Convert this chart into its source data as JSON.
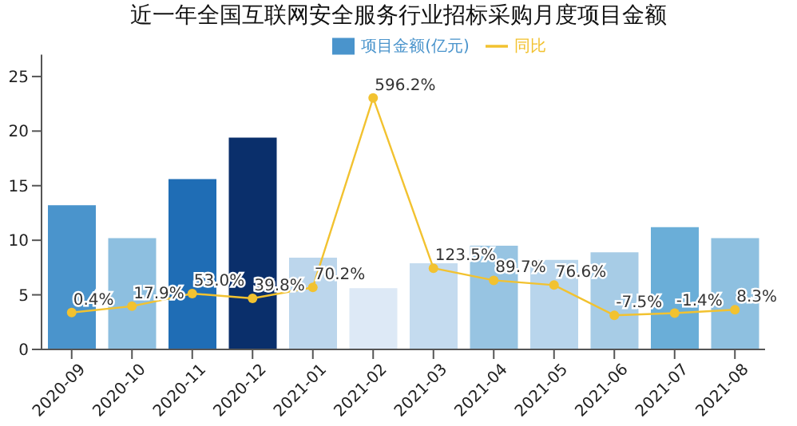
{
  "chart_data": {
    "type": "bar",
    "title": "近一年全国互联网安全服务行业招标采购月度项目金额",
    "categories": [
      "2020-09",
      "2020-10",
      "2020-11",
      "2020-12",
      "2021-01",
      "2021-02",
      "2021-03",
      "2021-04",
      "2021-05",
      "2021-06",
      "2021-07",
      "2021-08"
    ],
    "series": [
      {
        "name": "项目金额(亿元)",
        "color": "#4a94cc",
        "colors": [
          "#4a94cc",
          "#8dbfe0",
          "#1f6db5",
          "#0a2f6b",
          "#bcd6ec",
          "#dde9f6",
          "#c4dbef",
          "#97c4e2",
          "#b8d5ec",
          "#a7cce6",
          "#6aaed8",
          "#8ec0e0"
        ],
        "values": [
          13.2,
          10.2,
          15.6,
          19.4,
          8.4,
          5.6,
          7.9,
          9.5,
          8.2,
          8.9,
          11.2,
          10.2
        ]
      },
      {
        "type": "line",
        "name": "同比",
        "axis": "y2",
        "color": "#f2c230",
        "values": [
          0.4,
          17.9,
          53.0,
          39.8,
          70.2,
          596.2,
          123.5,
          89.7,
          76.6,
          -7.5,
          -1.4,
          8.3
        ],
        "value_labels": [
          "0.4%",
          "17.9%",
          "53.0%",
          "39.8%",
          "70.2%",
          "596.2%",
          "123.5%",
          "89.7%",
          "76.6%",
          "-7.5%",
          "-1.4%",
          "8.3%"
        ]
      }
    ],
    "ylim": [
      0,
      27
    ],
    "yticks": [
      0,
      5,
      10,
      15,
      20,
      25
    ],
    "y2lim": [
      -102,
      716
    ],
    "marker": "circle",
    "legend": "top",
    "grid": false
  }
}
